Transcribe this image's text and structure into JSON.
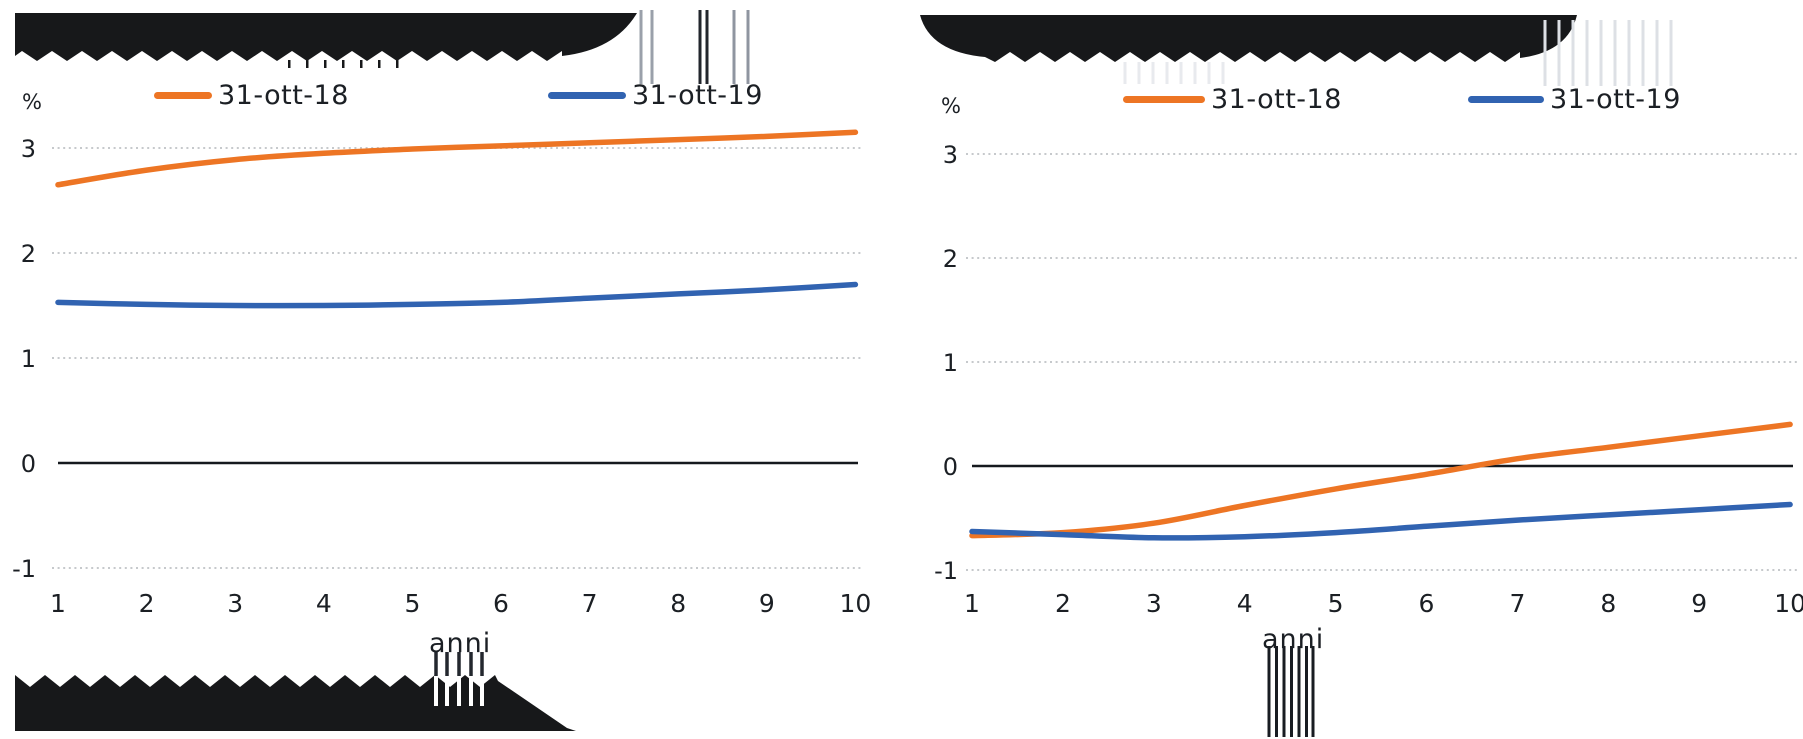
{
  "redacted_regions": [
    "left-chart-title",
    "right-chart-title",
    "left-chart-footnote"
  ],
  "chart_data": [
    {
      "type": "line",
      "title_redacted": true,
      "ylabel": "%",
      "xlabel": "anni",
      "x": [
        1,
        2,
        3,
        4,
        5,
        6,
        7,
        8,
        9,
        10
      ],
      "yticks": [
        3,
        2,
        1,
        0,
        -1
      ],
      "ylim": [
        -1.4,
        3.6
      ],
      "grid": "horizontal-dotted",
      "zero_line": "solid-black",
      "legend_position": "top",
      "series": [
        {
          "name": "31-ott-18",
          "color": "#ED7524",
          "values": [
            2.65,
            2.79,
            2.89,
            2.95,
            2.99,
            3.02,
            3.05,
            3.08,
            3.11,
            3.15
          ]
        },
        {
          "name": "31-ott-19",
          "color": "#3163B1",
          "values": [
            1.53,
            1.51,
            1.5,
            1.5,
            1.51,
            1.53,
            1.57,
            1.61,
            1.65,
            1.7
          ]
        }
      ]
    },
    {
      "type": "line",
      "title_redacted": true,
      "ylabel": "%",
      "xlabel": "anni",
      "x": [
        1,
        2,
        3,
        4,
        5,
        6,
        7,
        8,
        9,
        10
      ],
      "yticks": [
        3,
        2,
        1,
        0,
        -1
      ],
      "ylim": [
        -1.4,
        3.6
      ],
      "grid": "horizontal-dotted",
      "zero_line": "solid-black",
      "legend_position": "top",
      "series": [
        {
          "name": "31-ott-18",
          "color": "#ED7524",
          "values": [
            -0.67,
            -0.64,
            -0.55,
            -0.38,
            -0.22,
            -0.08,
            0.07,
            0.18,
            0.29,
            0.4
          ]
        },
        {
          "name": "31-ott-19",
          "color": "#3163B1",
          "values": [
            -0.63,
            -0.66,
            -0.69,
            -0.68,
            -0.64,
            -0.58,
            -0.52,
            -0.47,
            -0.42,
            -0.37
          ]
        }
      ]
    }
  ]
}
